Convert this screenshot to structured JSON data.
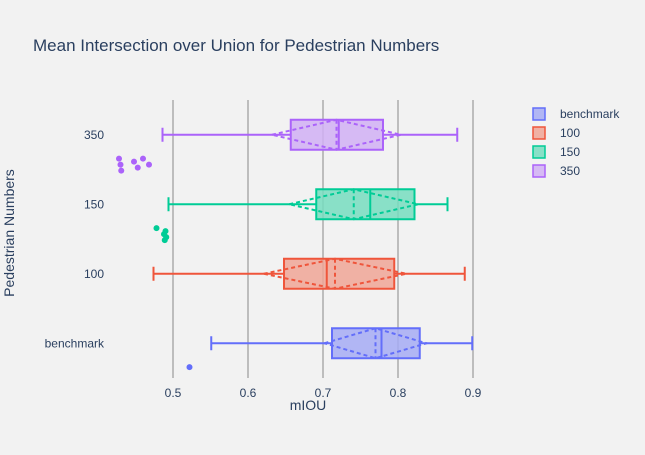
{
  "chart_data": {
    "type": "box",
    "orientation": "horizontal",
    "title": "Mean Intersection over Union for Pedestrian Numbers",
    "xlabel": "mIOU",
    "ylabel": "Pedestrian Numbers",
    "categories": [
      "benchmark",
      "100",
      "150",
      "350"
    ],
    "x_ticks": [
      0.5,
      0.6,
      0.7,
      0.8,
      0.9
    ],
    "x_tick_labels": [
      "0.5",
      "0.6",
      "0.7",
      "0.8",
      "0.9"
    ],
    "xlim": [
      0.42,
      0.94
    ],
    "grid": "vertical",
    "legend": "right",
    "background": "#f2f2f2",
    "series": [
      {
        "name": "benchmark",
        "color": "#636efa",
        "fill": "#a6acf5",
        "lowerfence": 0.551,
        "q1": 0.712,
        "median": 0.778,
        "q3": 0.829,
        "upperfence": 0.899,
        "mean": 0.77,
        "sd": 0.068,
        "outliers": [
          0.522
        ]
      },
      {
        "name": "100",
        "color": "#ef553b",
        "fill": "#f0a696",
        "lowerfence": 0.474,
        "q1": 0.648,
        "median": 0.705,
        "q3": 0.795,
        "upperfence": 0.889,
        "mean": 0.716,
        "sd": 0.095,
        "outliers": []
      },
      {
        "name": "150",
        "color": "#00cc96",
        "fill": "#77ddc0",
        "lowerfence": 0.494,
        "q1": 0.691,
        "median": 0.763,
        "q3": 0.822,
        "upperfence": 0.866,
        "mean": 0.741,
        "sd": 0.086,
        "outliers": [
          0.478,
          0.488,
          0.489,
          0.49,
          0.491
        ]
      },
      {
        "name": "350",
        "color": "#ab63fa",
        "fill": "#d1b0f5",
        "lowerfence": 0.486,
        "q1": 0.657,
        "median": 0.721,
        "q3": 0.78,
        "upperfence": 0.879,
        "mean": 0.718,
        "sd": 0.086,
        "outliers": [
          0.428,
          0.43,
          0.431,
          0.448,
          0.453,
          0.46,
          0.468
        ]
      }
    ]
  }
}
